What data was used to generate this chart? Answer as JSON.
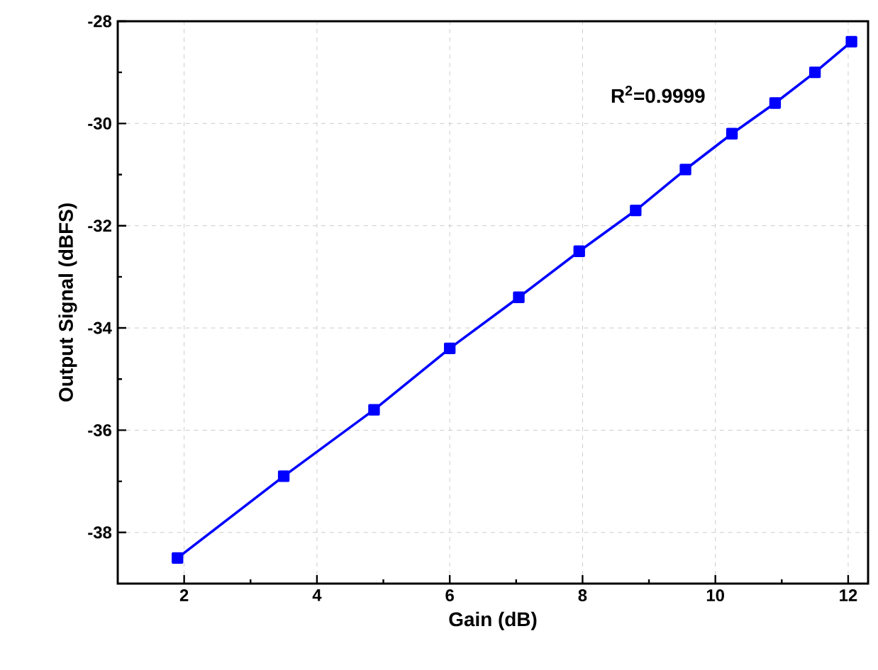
{
  "chart_data": {
    "type": "line",
    "xlabel": "Gain (dB)",
    "ylabel": "Output Signal (dBFS)",
    "x": [
      1.9,
      3.5,
      4.86,
      6.0,
      7.04,
      7.95,
      8.8,
      9.55,
      10.25,
      10.9,
      11.5,
      12.05
    ],
    "series": [
      {
        "color": "#0000ff",
        "values": [
          -38.5,
          -36.9,
          -35.6,
          -34.4,
          -33.4,
          -32.5,
          -31.7,
          -30.9,
          -30.2,
          -29.6,
          -29.0,
          -28.4
        ]
      }
    ],
    "xlim": [
      1,
      12.3
    ],
    "ylim": [
      -39,
      -28
    ],
    "xticks": [
      2,
      4,
      6,
      8,
      10,
      12
    ],
    "yticks": [
      -38,
      -36,
      -34,
      -32,
      -30,
      -28
    ],
    "grid": true,
    "marker": "square",
    "line_style": "solid",
    "annotations": [
      "R$^{2}$=0.9999"
    ]
  }
}
